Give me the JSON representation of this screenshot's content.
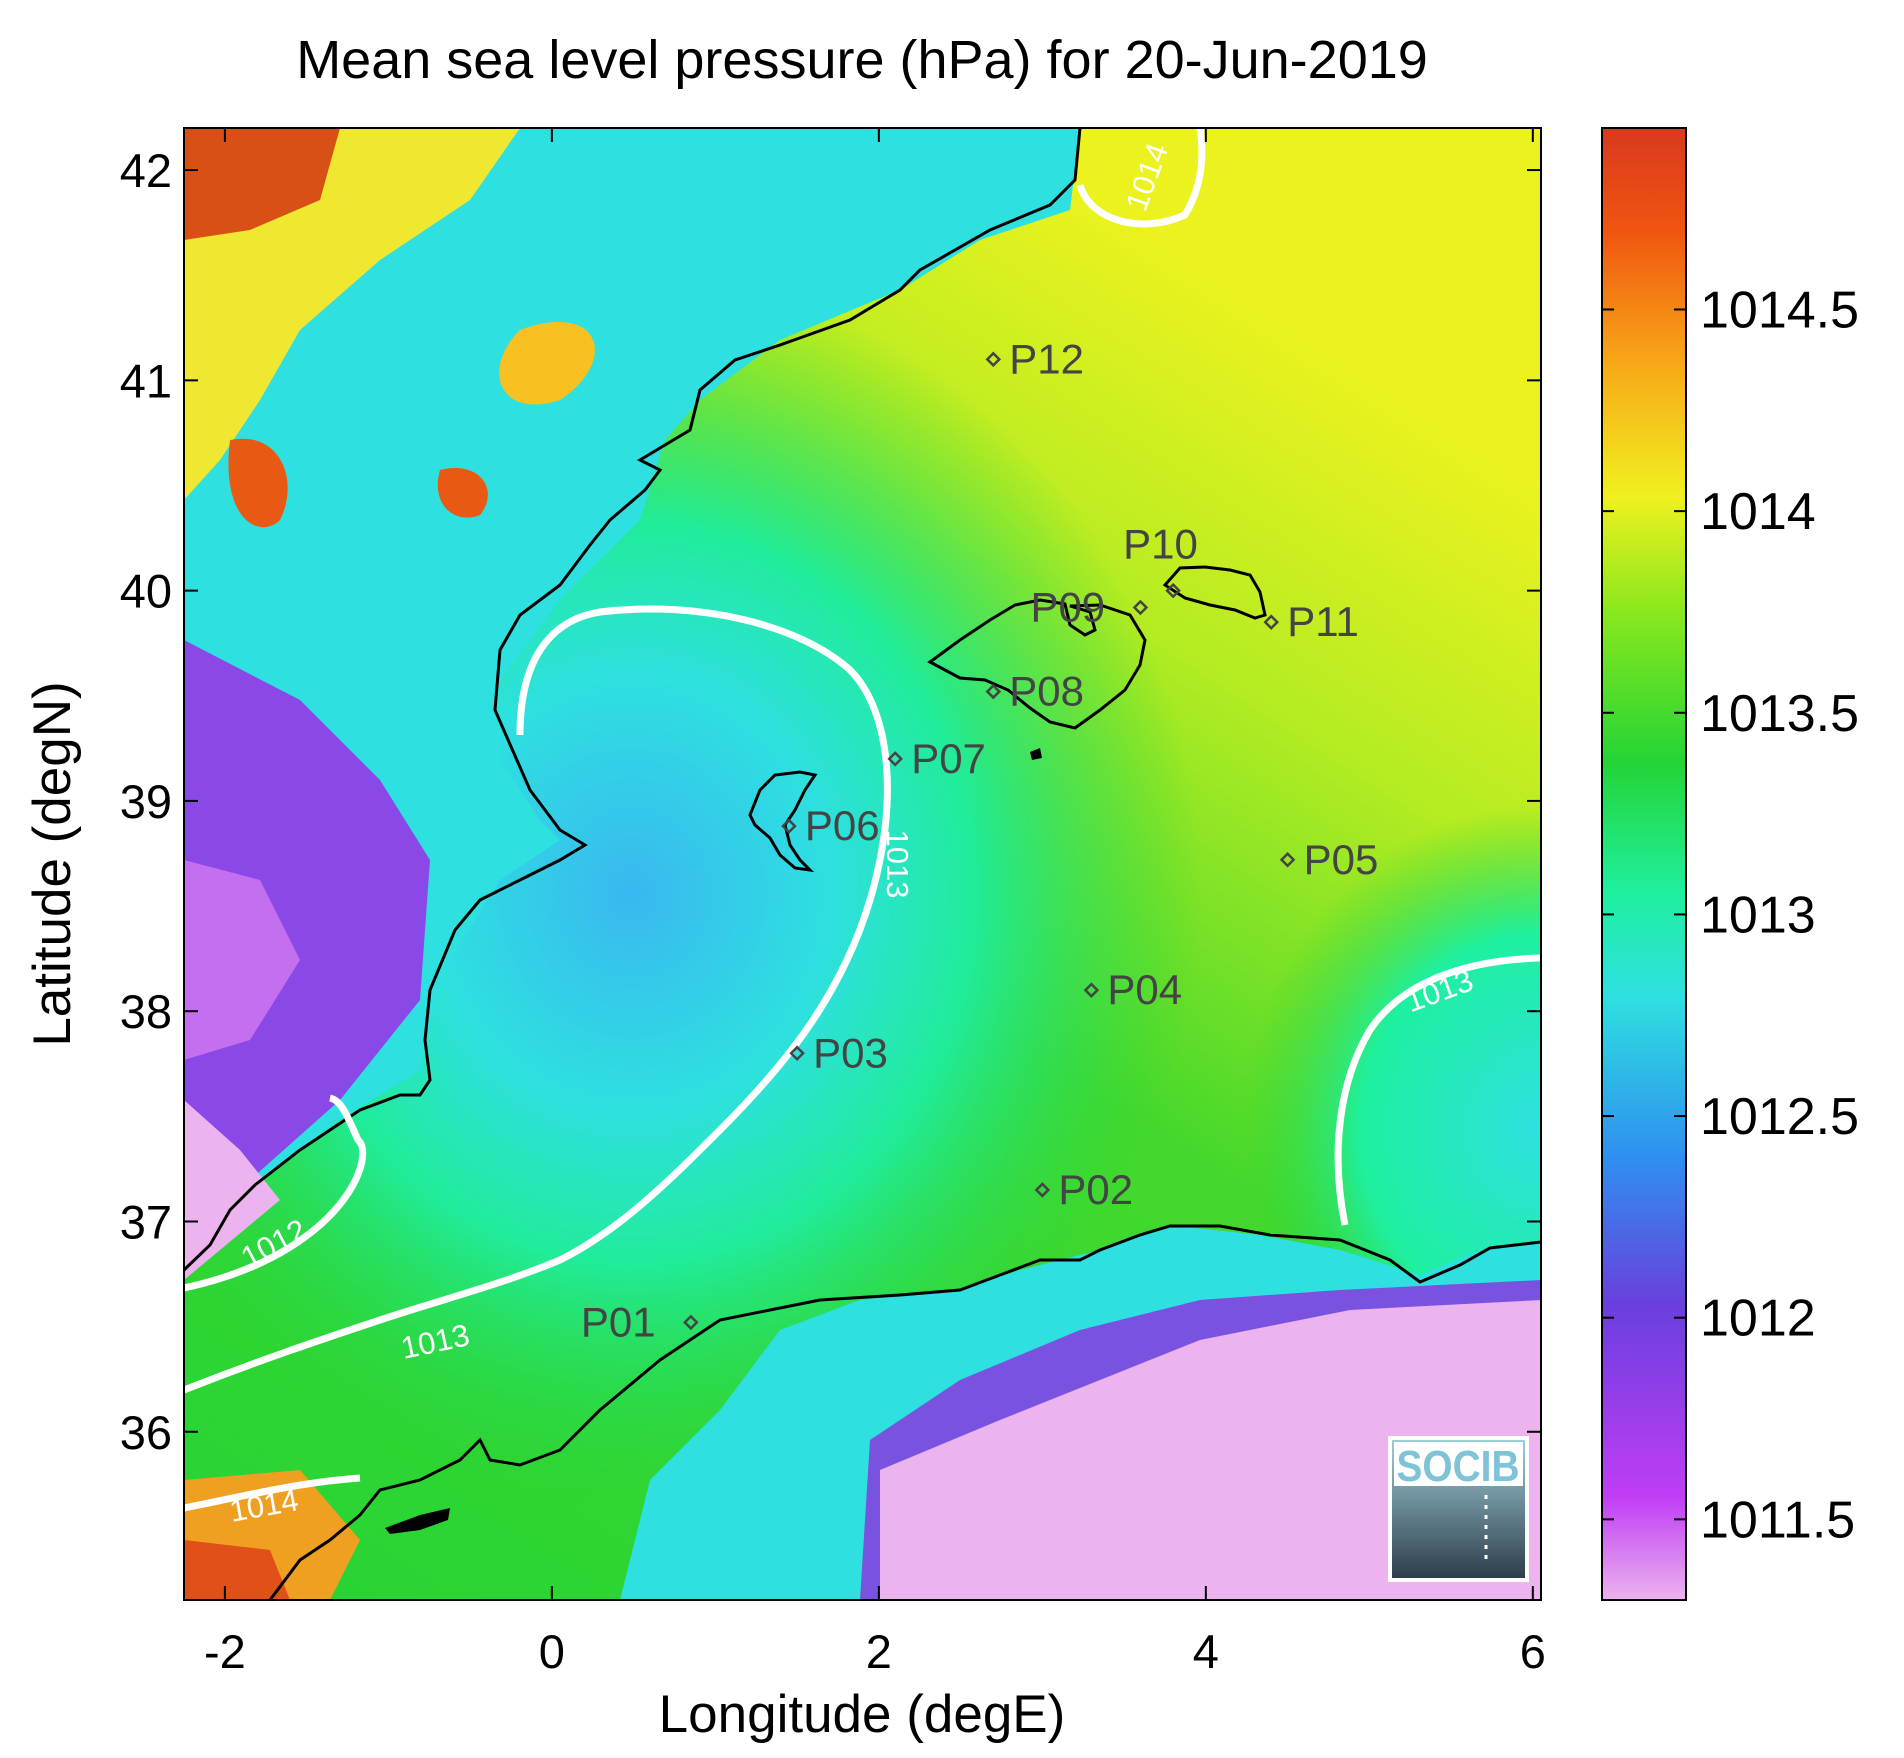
{
  "title": "Mean sea level pressure (hPa) for 20-Jun-2019",
  "x_axis": {
    "label": "Longitude (degE)",
    "range": [
      -2.25,
      6.05
    ],
    "ticks": [
      -2,
      0,
      2,
      4,
      6
    ],
    "tick_labels": [
      "-2",
      "0",
      "2",
      "4",
      "6"
    ]
  },
  "y_axis": {
    "label": "Latitude (degN)",
    "range": [
      35.2,
      42.2
    ],
    "ticks": [
      36,
      37,
      38,
      39,
      40,
      41,
      42
    ],
    "tick_labels": [
      "36",
      "37",
      "38",
      "39",
      "40",
      "41",
      "42"
    ]
  },
  "colorbar": {
    "range": [
      1011.3,
      1014.95
    ],
    "ticks": [
      1011.5,
      1012,
      1012.5,
      1013,
      1013.5,
      1014,
      1014.5
    ],
    "tick_labels": [
      "1011.5",
      "1012",
      "1012.5",
      "1013",
      "1013.5",
      "1014",
      "1014.5"
    ],
    "colors": [
      "#ecb3ee",
      "#c03ef5",
      "#6a3fdc",
      "#2f8ff0",
      "#2ee0e0",
      "#1ef0a0",
      "#25d435",
      "#88e81e",
      "#f0f01e",
      "#f8a818",
      "#f05510",
      "#d83a1e"
    ]
  },
  "stations": [
    {
      "id": "P01",
      "lon": 0.85,
      "lat": 36.52
    },
    {
      "id": "P02",
      "lon": 3.0,
      "lat": 37.15
    },
    {
      "id": "P03",
      "lon": 1.5,
      "lat": 37.8
    },
    {
      "id": "P04",
      "lon": 3.3,
      "lat": 38.1
    },
    {
      "id": "P05",
      "lon": 4.5,
      "lat": 38.72
    },
    {
      "id": "P06",
      "lon": 1.45,
      "lat": 38.88
    },
    {
      "id": "P07",
      "lon": 2.1,
      "lat": 39.2
    },
    {
      "id": "P08",
      "lon": 2.7,
      "lat": 39.52
    },
    {
      "id": "P09",
      "lon": 3.6,
      "lat": 39.92
    },
    {
      "id": "P10",
      "lon": 3.8,
      "lat": 40.0
    },
    {
      "id": "P11",
      "lon": 4.4,
      "lat": 39.85
    },
    {
      "id": "P12",
      "lon": 2.7,
      "lat": 41.1
    }
  ],
  "contour_labels": [
    {
      "text": "1014",
      "lon": 3.7,
      "lat": 41.95
    },
    {
      "text": "1013",
      "lon": 2.05,
      "lat": 38.7
    },
    {
      "text": "1013",
      "lon": 5.45,
      "lat": 38.05
    },
    {
      "text": "1012",
      "lon": -1.67,
      "lat": 36.85
    },
    {
      "text": "1013",
      "lon": -0.7,
      "lat": 36.38
    },
    {
      "text": "1014",
      "lon": -1.75,
      "lat": 35.6
    }
  ],
  "logo": "SOCIB",
  "colors": {
    "contour": "#ffffff",
    "coastline": "#000000",
    "station_marker": "#444444"
  }
}
